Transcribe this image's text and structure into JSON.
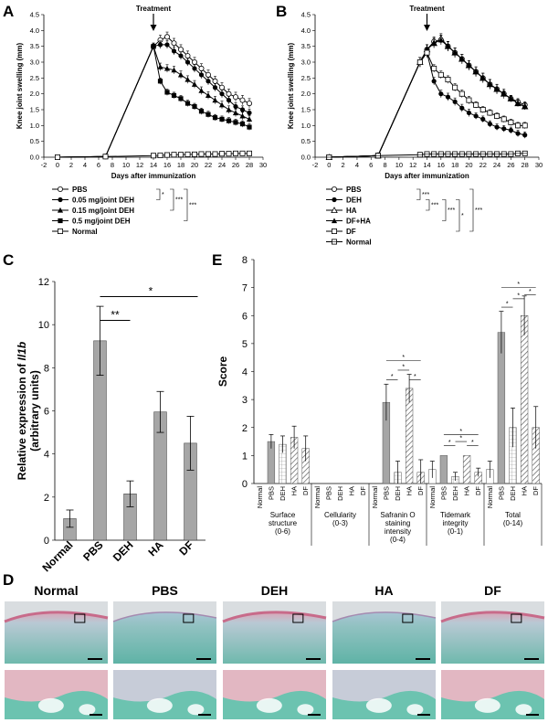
{
  "panel_letters": {
    "a": "A",
    "b": "B",
    "c": "C",
    "d": "D",
    "e": "E"
  },
  "chart_data": [
    {
      "id": "A",
      "type": "line",
      "xlabel": "Days after immunization",
      "ylabel": "Knee joint swelling (mm)",
      "xlim": [
        -2,
        30
      ],
      "ylim": [
        0,
        4.5
      ],
      "xticks": [
        -2,
        0,
        2,
        4,
        6,
        8,
        10,
        12,
        14,
        16,
        18,
        20,
        22,
        24,
        26,
        28,
        30
      ],
      "yticks": [
        0.0,
        0.5,
        1.0,
        1.5,
        2.0,
        2.5,
        3.0,
        3.5,
        4.0,
        4.5
      ],
      "annotation": "Treatment",
      "annotation_x": 14,
      "x": [
        0,
        7,
        14,
        15,
        16,
        17,
        18,
        19,
        20,
        21,
        22,
        23,
        24,
        25,
        26,
        27,
        28
      ],
      "series": [
        {
          "name": "PBS",
          "marker": "circle-open",
          "values": [
            0,
            0.02,
            3.5,
            3.7,
            3.8,
            3.6,
            3.4,
            3.2,
            3.0,
            2.8,
            2.6,
            2.4,
            2.2,
            2.0,
            1.9,
            1.8,
            1.7
          ],
          "err": [
            0,
            0,
            0.1,
            0.15,
            0.15,
            0.15,
            0.15,
            0.15,
            0.15,
            0.15,
            0.15,
            0.15,
            0.15,
            0.15,
            0.15,
            0.15,
            0.15
          ]
        },
        {
          "name": "0.05 mg/joint DEH",
          "marker": "circle-filled",
          "values": [
            0,
            0.02,
            3.5,
            3.55,
            3.55,
            3.35,
            3.2,
            3.0,
            2.8,
            2.6,
            2.4,
            2.2,
            2.0,
            1.8,
            1.6,
            1.5,
            1.4
          ],
          "err": [
            0,
            0,
            0.1,
            0.12,
            0.12,
            0.12,
            0.12,
            0.12,
            0.12,
            0.12,
            0.12,
            0.12,
            0.12,
            0.12,
            0.12,
            0.12,
            0.12
          ]
        },
        {
          "name": "0.15 mg/joint DEH",
          "marker": "triangle-filled",
          "values": [
            0,
            0.02,
            3.5,
            2.85,
            2.8,
            2.75,
            2.6,
            2.45,
            2.3,
            2.1,
            1.95,
            1.8,
            1.65,
            1.5,
            1.4,
            1.3,
            1.2
          ],
          "err": [
            0,
            0,
            0.1,
            0.12,
            0.12,
            0.12,
            0.12,
            0.12,
            0.12,
            0.12,
            0.12,
            0.12,
            0.12,
            0.12,
            0.12,
            0.12,
            0.12
          ]
        },
        {
          "name": "0.5 mg/joint DEH",
          "marker": "square-filled",
          "values": [
            0,
            0.02,
            3.5,
            2.4,
            2.05,
            1.95,
            1.85,
            1.7,
            1.6,
            1.45,
            1.35,
            1.25,
            1.2,
            1.15,
            1.1,
            1.05,
            0.95
          ],
          "err": [
            0,
            0,
            0.1,
            0.1,
            0.1,
            0.1,
            0.1,
            0.1,
            0.1,
            0.1,
            0.1,
            0.1,
            0.1,
            0.1,
            0.1,
            0.1,
            0.1
          ]
        },
        {
          "name": "Normal",
          "marker": "square-open",
          "values": [
            0,
            0.02,
            0.05,
            0.06,
            0.07,
            0.08,
            0.08,
            0.09,
            0.09,
            0.1,
            0.1,
            0.1,
            0.11,
            0.11,
            0.12,
            0.12,
            0.12
          ],
          "err": [
            0,
            0,
            0.02,
            0.02,
            0.02,
            0.02,
            0.02,
            0.02,
            0.02,
            0.02,
            0.02,
            0.02,
            0.02,
            0.02,
            0.02,
            0.02,
            0.02
          ]
        }
      ],
      "significance": [
        "*",
        "***",
        "***"
      ]
    },
    {
      "id": "B",
      "type": "line",
      "xlabel": "Days after immunization",
      "ylabel": "Knee joint swelling (mm)",
      "xlim": [
        -2,
        30
      ],
      "ylim": [
        0,
        4.5
      ],
      "xticks": [
        -2,
        0,
        2,
        4,
        6,
        8,
        10,
        12,
        14,
        16,
        18,
        20,
        22,
        24,
        26,
        28,
        30
      ],
      "yticks": [
        0.0,
        0.5,
        1.0,
        1.5,
        2.0,
        2.5,
        3.0,
        3.5,
        4.0,
        4.5
      ],
      "annotation": "Treatment",
      "annotation_x": 14,
      "x": [
        0,
        7,
        13,
        14,
        15,
        16,
        17,
        18,
        19,
        20,
        21,
        22,
        23,
        24,
        25,
        26,
        27,
        28
      ],
      "series": [
        {
          "name": "PBS",
          "marker": "circle-open",
          "values": [
            0,
            0.05,
            3.0,
            3.4,
            3.65,
            3.7,
            3.5,
            3.3,
            3.1,
            2.9,
            2.7,
            2.5,
            2.3,
            2.15,
            2.0,
            1.85,
            1.75,
            1.65
          ],
          "err": [
            0,
            0,
            0.15,
            0.15,
            0.15,
            0.15,
            0.15,
            0.15,
            0.15,
            0.15,
            0.15,
            0.15,
            0.15,
            0.15,
            0.15,
            0.1,
            0.1,
            0.1
          ]
        },
        {
          "name": "DEH",
          "marker": "circle-filled",
          "values": [
            0,
            0.05,
            3.0,
            3.3,
            2.4,
            2.0,
            1.9,
            1.75,
            1.55,
            1.4,
            1.3,
            1.2,
            1.05,
            0.95,
            0.9,
            0.85,
            0.75,
            0.7
          ],
          "err": [
            0,
            0,
            0.15,
            0.15,
            0.12,
            0.12,
            0.12,
            0.12,
            0.12,
            0.12,
            0.1,
            0.1,
            0.1,
            0.1,
            0.1,
            0.1,
            0.1,
            0.1
          ]
        },
        {
          "name": "HA",
          "marker": "triangle-open",
          "values": [
            0,
            0.05,
            3.0,
            3.4,
            3.6,
            3.75,
            3.5,
            3.3,
            3.1,
            2.9,
            2.7,
            2.5,
            2.3,
            2.15,
            2.0,
            1.85,
            1.7,
            1.6
          ],
          "err": [
            0,
            0,
            0.15,
            0.15,
            0.15,
            0.15,
            0.15,
            0.15,
            0.15,
            0.15,
            0.15,
            0.15,
            0.15,
            0.15,
            0.1,
            0.1,
            0.1,
            0.1
          ]
        },
        {
          "name": "DF+HA",
          "marker": "triangle-filled",
          "values": [
            0,
            0.05,
            3.0,
            3.4,
            3.6,
            3.7,
            3.5,
            3.3,
            3.1,
            2.9,
            2.7,
            2.5,
            2.3,
            2.15,
            2.0,
            1.85,
            1.7,
            1.6
          ],
          "err": [
            0,
            0,
            0.15,
            0.15,
            0.15,
            0.15,
            0.15,
            0.15,
            0.15,
            0.15,
            0.15,
            0.15,
            0.15,
            0.15,
            0.1,
            0.1,
            0.1,
            0.1
          ]
        },
        {
          "name": "DF",
          "marker": "square-open",
          "values": [
            0,
            0.05,
            3.0,
            3.3,
            2.8,
            2.6,
            2.45,
            2.2,
            2.0,
            1.8,
            1.65,
            1.5,
            1.4,
            1.3,
            1.2,
            1.1,
            1.0,
            1.0
          ],
          "err": [
            0,
            0,
            0.15,
            0.15,
            0.12,
            0.12,
            0.12,
            0.12,
            0.12,
            0.12,
            0.1,
            0.1,
            0.1,
            0.1,
            0.1,
            0.1,
            0.1,
            0.1
          ]
        },
        {
          "name": "Normal",
          "marker": "square-line",
          "values": [
            0,
            0.05,
            0.08,
            0.1,
            0.1,
            0.1,
            0.1,
            0.1,
            0.1,
            0.1,
            0.1,
            0.1,
            0.1,
            0.1,
            0.1,
            0.1,
            0.12,
            0.12
          ],
          "err": [
            0,
            0,
            0.02,
            0.02,
            0.02,
            0.02,
            0.02,
            0.02,
            0.02,
            0.02,
            0.02,
            0.02,
            0.02,
            0.02,
            0.02,
            0.02,
            0.02,
            0.02
          ]
        }
      ],
      "significance": [
        "***",
        "***",
        "***",
        "*",
        "***"
      ]
    },
    {
      "id": "C",
      "type": "bar",
      "ylabel_line1": "Relative expression of ",
      "ylabel_gene": "Il1b",
      "ylabel_line2": "(arbitrary units)",
      "ylim": [
        0,
        12
      ],
      "yticks": [
        0,
        2,
        4,
        6,
        8,
        10,
        12
      ],
      "categories": [
        "Normal",
        "PBS",
        "DEH",
        "HA",
        "DF"
      ],
      "values": [
        1.0,
        9.25,
        2.15,
        5.95,
        4.5
      ],
      "err": [
        0.4,
        1.6,
        0.6,
        0.95,
        1.25
      ],
      "significance": [
        "**",
        "*"
      ]
    },
    {
      "id": "E",
      "type": "bar",
      "ylabel": "Score",
      "ylim": [
        0,
        8
      ],
      "yticks": [
        0,
        1,
        2,
        3,
        4,
        5,
        6,
        7,
        8
      ],
      "categories": [
        "Normal",
        "PBS",
        "DEH",
        "HA",
        "DF"
      ],
      "groups": [
        {
          "label": "Surface\nstructure\n(0-6)",
          "values": [
            0,
            1.5,
            1.4,
            1.65,
            1.25
          ],
          "err": [
            0,
            0.25,
            0.3,
            0.4,
            0.45
          ]
        },
        {
          "label": "Cellularity\n(0-3)",
          "values": [
            0,
            0,
            0,
            0,
            0
          ],
          "err": [
            0,
            0,
            0,
            0,
            0
          ]
        },
        {
          "label": "Safranin O\nstaining\nintensity\n(0-4)",
          "values": [
            0,
            2.9,
            0.4,
            3.4,
            0.4
          ],
          "err": [
            0,
            0.65,
            0.4,
            0.5,
            0.45
          ]
        },
        {
          "label": "Tidemark\nintegrity\n(0-1)",
          "values": [
            0.5,
            1.0,
            0.25,
            1.0,
            0.4
          ],
          "err": [
            0.3,
            0,
            0.15,
            0,
            0.15
          ]
        },
        {
          "label": "Total\n(0-14)",
          "values": [
            0.5,
            5.4,
            2.0,
            6.0,
            2.0
          ],
          "err": [
            0.3,
            0.75,
            0.7,
            0.7,
            0.75
          ]
        }
      ],
      "significance": [
        "*",
        "*",
        "*",
        "*",
        "*"
      ]
    }
  ],
  "panel_d": {
    "labels": [
      "Normal",
      "PBS",
      "DEH",
      "HA",
      "DF"
    ]
  }
}
